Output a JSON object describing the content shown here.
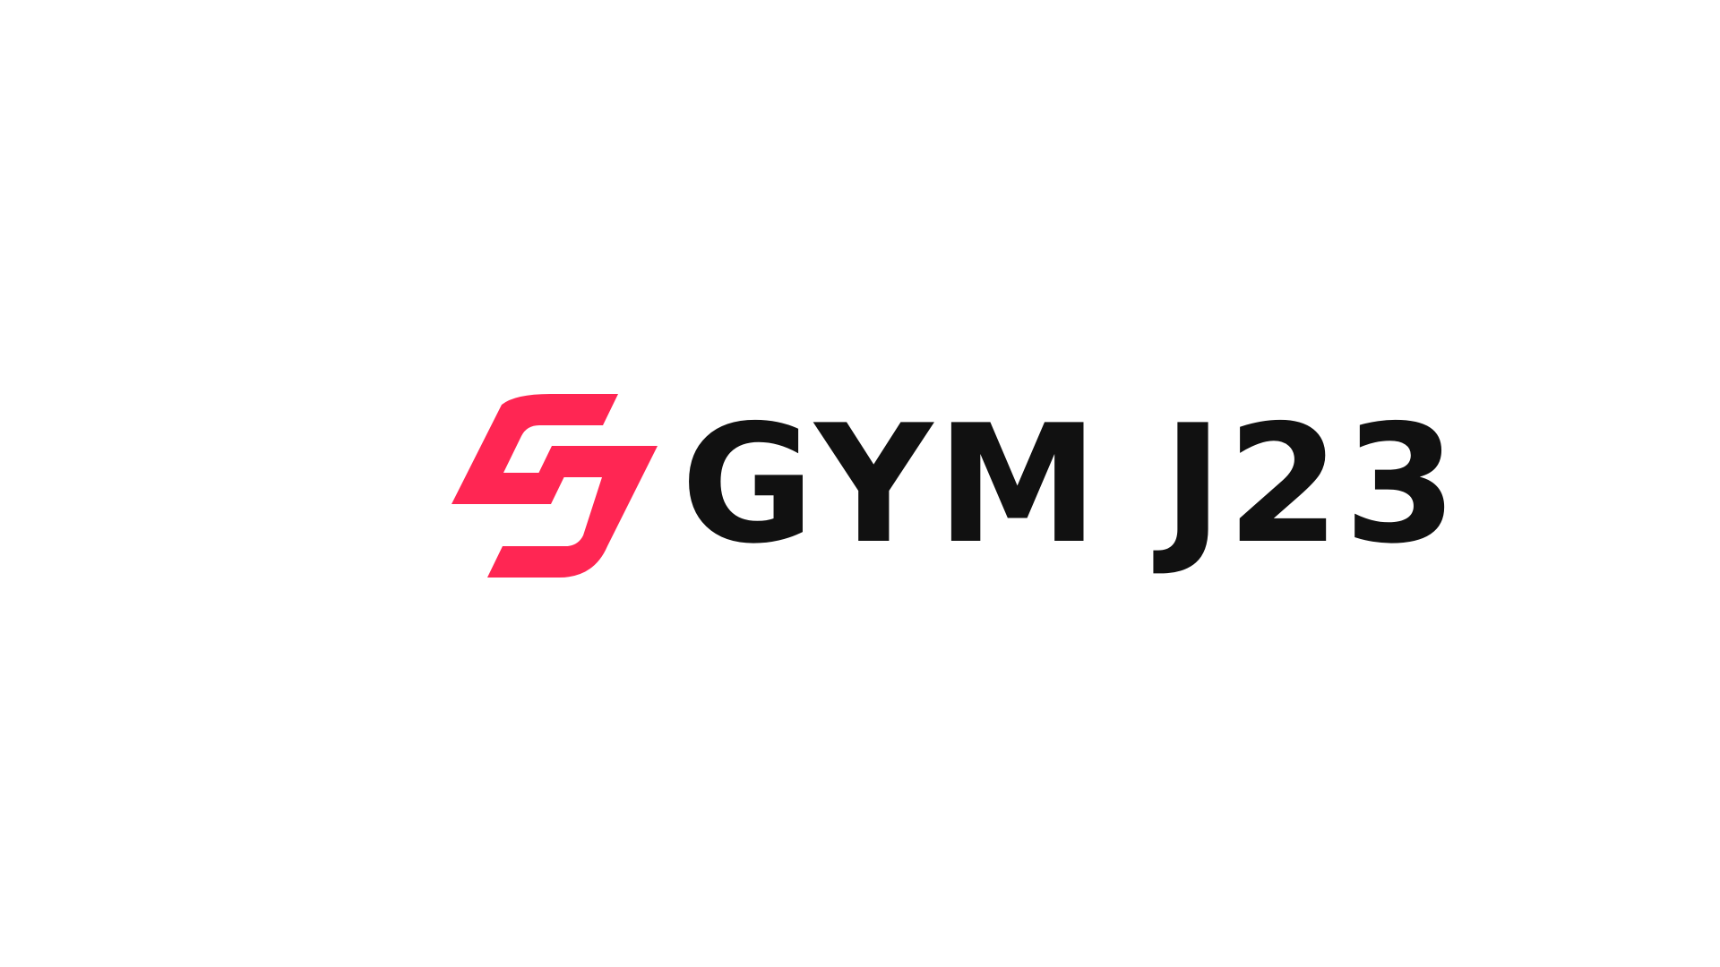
{
  "brand": {
    "name": "GYM J23",
    "mark_icon": "double-s-lightning-logo-icon",
    "mark_color": "#ff2653",
    "text_color": "#111111",
    "background_color": "#ffffff"
  }
}
